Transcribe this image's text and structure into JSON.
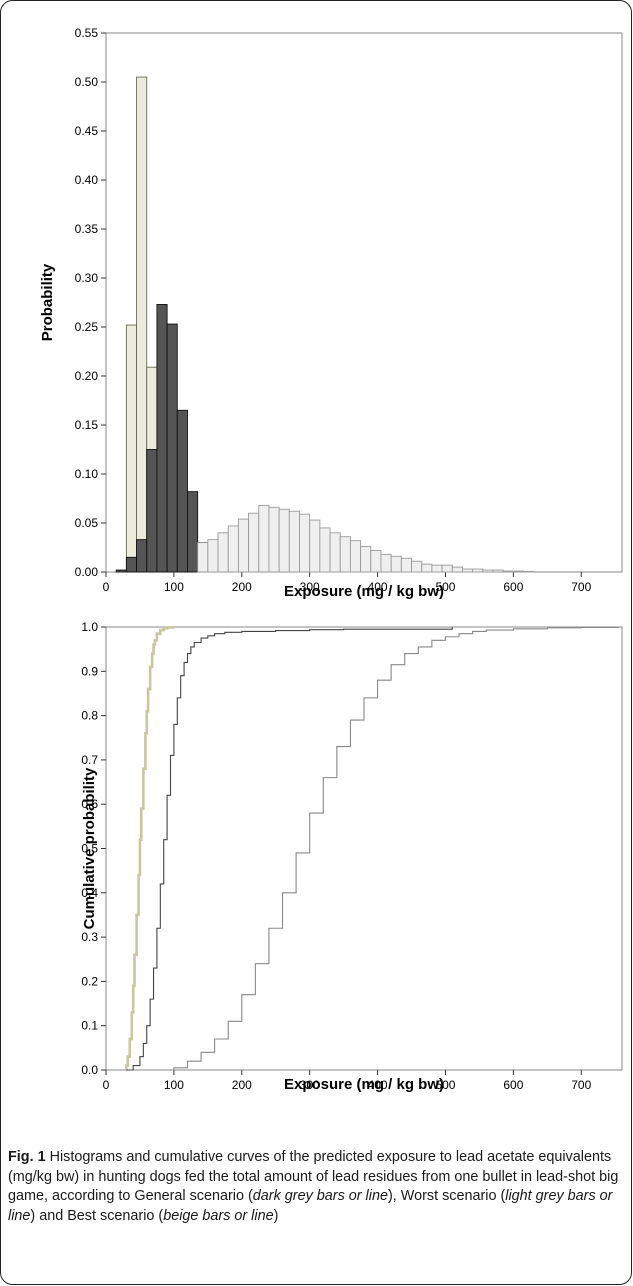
{
  "chart_data": [
    {
      "type": "bar",
      "xlabel": "Exposure  (mg / kg bw)",
      "ylabel": "Probability",
      "xlim": [
        0,
        760
      ],
      "ylim": [
        0,
        0.55
      ],
      "xticks": [
        "0",
        "100",
        "200",
        "300",
        "400",
        "500",
        "600",
        "700"
      ],
      "yticks": [
        "0.00",
        "0.05",
        "0.10",
        "0.15",
        "0.20",
        "0.25",
        "0.30",
        "0.35",
        "0.40",
        "0.45",
        "0.50",
        "0.55"
      ],
      "colors": {
        "General": "#555555",
        "Worst": "#efefef",
        "Best": "#ececdd"
      },
      "series": [
        {
          "scenario": "Best",
          "bin_starts": [
            30,
            45,
            60
          ],
          "bin_width": 15,
          "values": [
            0.252,
            0.505,
            0.209
          ]
        },
        {
          "scenario": "General",
          "bin_starts": [
            15,
            30,
            45,
            60,
            75,
            90,
            105,
            120,
            135,
            150,
            165,
            180,
            195,
            210,
            225,
            240,
            255,
            270
          ],
          "bin_width": 15,
          "values": [
            0.002,
            0.015,
            0.033,
            0.125,
            0.273,
            0.253,
            0.165,
            0.082,
            0.03,
            0.014,
            0.007,
            0.004,
            0.003,
            0.002,
            0.002,
            0.001,
            0.0005,
            0.002
          ]
        },
        {
          "scenario": "Worst",
          "bin_starts": [
            135,
            150,
            165,
            180,
            195,
            210,
            225,
            240,
            255,
            270,
            285,
            300,
            315,
            330,
            345,
            360,
            375,
            390,
            405,
            420,
            435,
            450,
            465,
            480,
            495,
            510,
            525,
            540,
            555,
            570,
            585,
            600,
            615
          ],
          "bin_width": 15,
          "values": [
            0.03,
            0.033,
            0.04,
            0.047,
            0.054,
            0.06,
            0.068,
            0.066,
            0.064,
            0.062,
            0.059,
            0.053,
            0.045,
            0.04,
            0.036,
            0.032,
            0.026,
            0.022,
            0.018,
            0.016,
            0.014,
            0.011,
            0.008,
            0.007,
            0.007,
            0.005,
            0.003,
            0.003,
            0.002,
            0.002,
            0.001,
            0.001,
            0.0005
          ]
        }
      ]
    },
    {
      "type": "line",
      "xlabel": "Exposure (mg / kg bw)",
      "ylabel": "Cumulative probability",
      "xlim": [
        0,
        760
      ],
      "ylim": [
        0,
        1.0
      ],
      "xticks": [
        "0",
        "100",
        "200",
        "300",
        "400",
        "500",
        "600",
        "700"
      ],
      "yticks": [
        "0.0",
        "0.1",
        "0.2",
        "0.3",
        "0.4",
        "0.5",
        "0.6",
        "0.7",
        "0.8",
        "0.9",
        "1.0"
      ],
      "colors": {
        "General": "#444444",
        "Worst": "#888888",
        "Best": "#c8c8a0"
      },
      "series": [
        {
          "scenario": "Best",
          "x": [
            28,
            30,
            32,
            35,
            38,
            40,
            42,
            45,
            48,
            50,
            52,
            55,
            58,
            60,
            62,
            65,
            68,
            70,
            72,
            75,
            80,
            85,
            90,
            100
          ],
          "y": [
            0.0,
            0.01,
            0.03,
            0.07,
            0.13,
            0.19,
            0.26,
            0.35,
            0.44,
            0.52,
            0.59,
            0.68,
            0.76,
            0.81,
            0.86,
            0.91,
            0.94,
            0.96,
            0.97,
            0.985,
            0.993,
            0.997,
            0.999,
            1.0
          ]
        },
        {
          "scenario": "General",
          "x": [
            30,
            40,
            50,
            55,
            60,
            65,
            70,
            75,
            80,
            85,
            90,
            95,
            100,
            105,
            110,
            115,
            120,
            125,
            130,
            140,
            150,
            160,
            175,
            200,
            250,
            300,
            350,
            510
          ],
          "y": [
            0.0,
            0.01,
            0.03,
            0.06,
            0.1,
            0.16,
            0.23,
            0.32,
            0.42,
            0.52,
            0.62,
            0.71,
            0.78,
            0.84,
            0.89,
            0.92,
            0.94,
            0.955,
            0.965,
            0.975,
            0.98,
            0.985,
            0.988,
            0.99,
            0.992,
            0.994,
            0.995,
            1.0
          ]
        },
        {
          "scenario": "Worst",
          "x": [
            90,
            100,
            120,
            140,
            160,
            180,
            200,
            220,
            240,
            260,
            280,
            300,
            320,
            340,
            360,
            380,
            400,
            420,
            440,
            460,
            480,
            500,
            520,
            540,
            560,
            600,
            650,
            700,
            755
          ],
          "y": [
            0.0,
            0.005,
            0.02,
            0.04,
            0.07,
            0.11,
            0.17,
            0.24,
            0.32,
            0.4,
            0.49,
            0.58,
            0.66,
            0.73,
            0.79,
            0.84,
            0.88,
            0.915,
            0.94,
            0.955,
            0.97,
            0.978,
            0.985,
            0.99,
            0.993,
            0.996,
            0.998,
            0.999,
            1.0
          ]
        }
      ]
    }
  ],
  "caption": {
    "fig_label": "Fig. 1",
    "text_1": " Histograms and cumulative curves of the predicted exposure to lead acetate equivalents (mg/kg bw) in hunting dogs fed the total amount of lead residues from one bullet in lead-shot big game, according to General scenario (",
    "general_term": "dark grey bars or line",
    "text_2": "), Worst scenario (",
    "worst_term": "light grey bars or line",
    "text_3": ") and Best scenario (",
    "best_term": "beige bars or line",
    "text_4": ")"
  }
}
